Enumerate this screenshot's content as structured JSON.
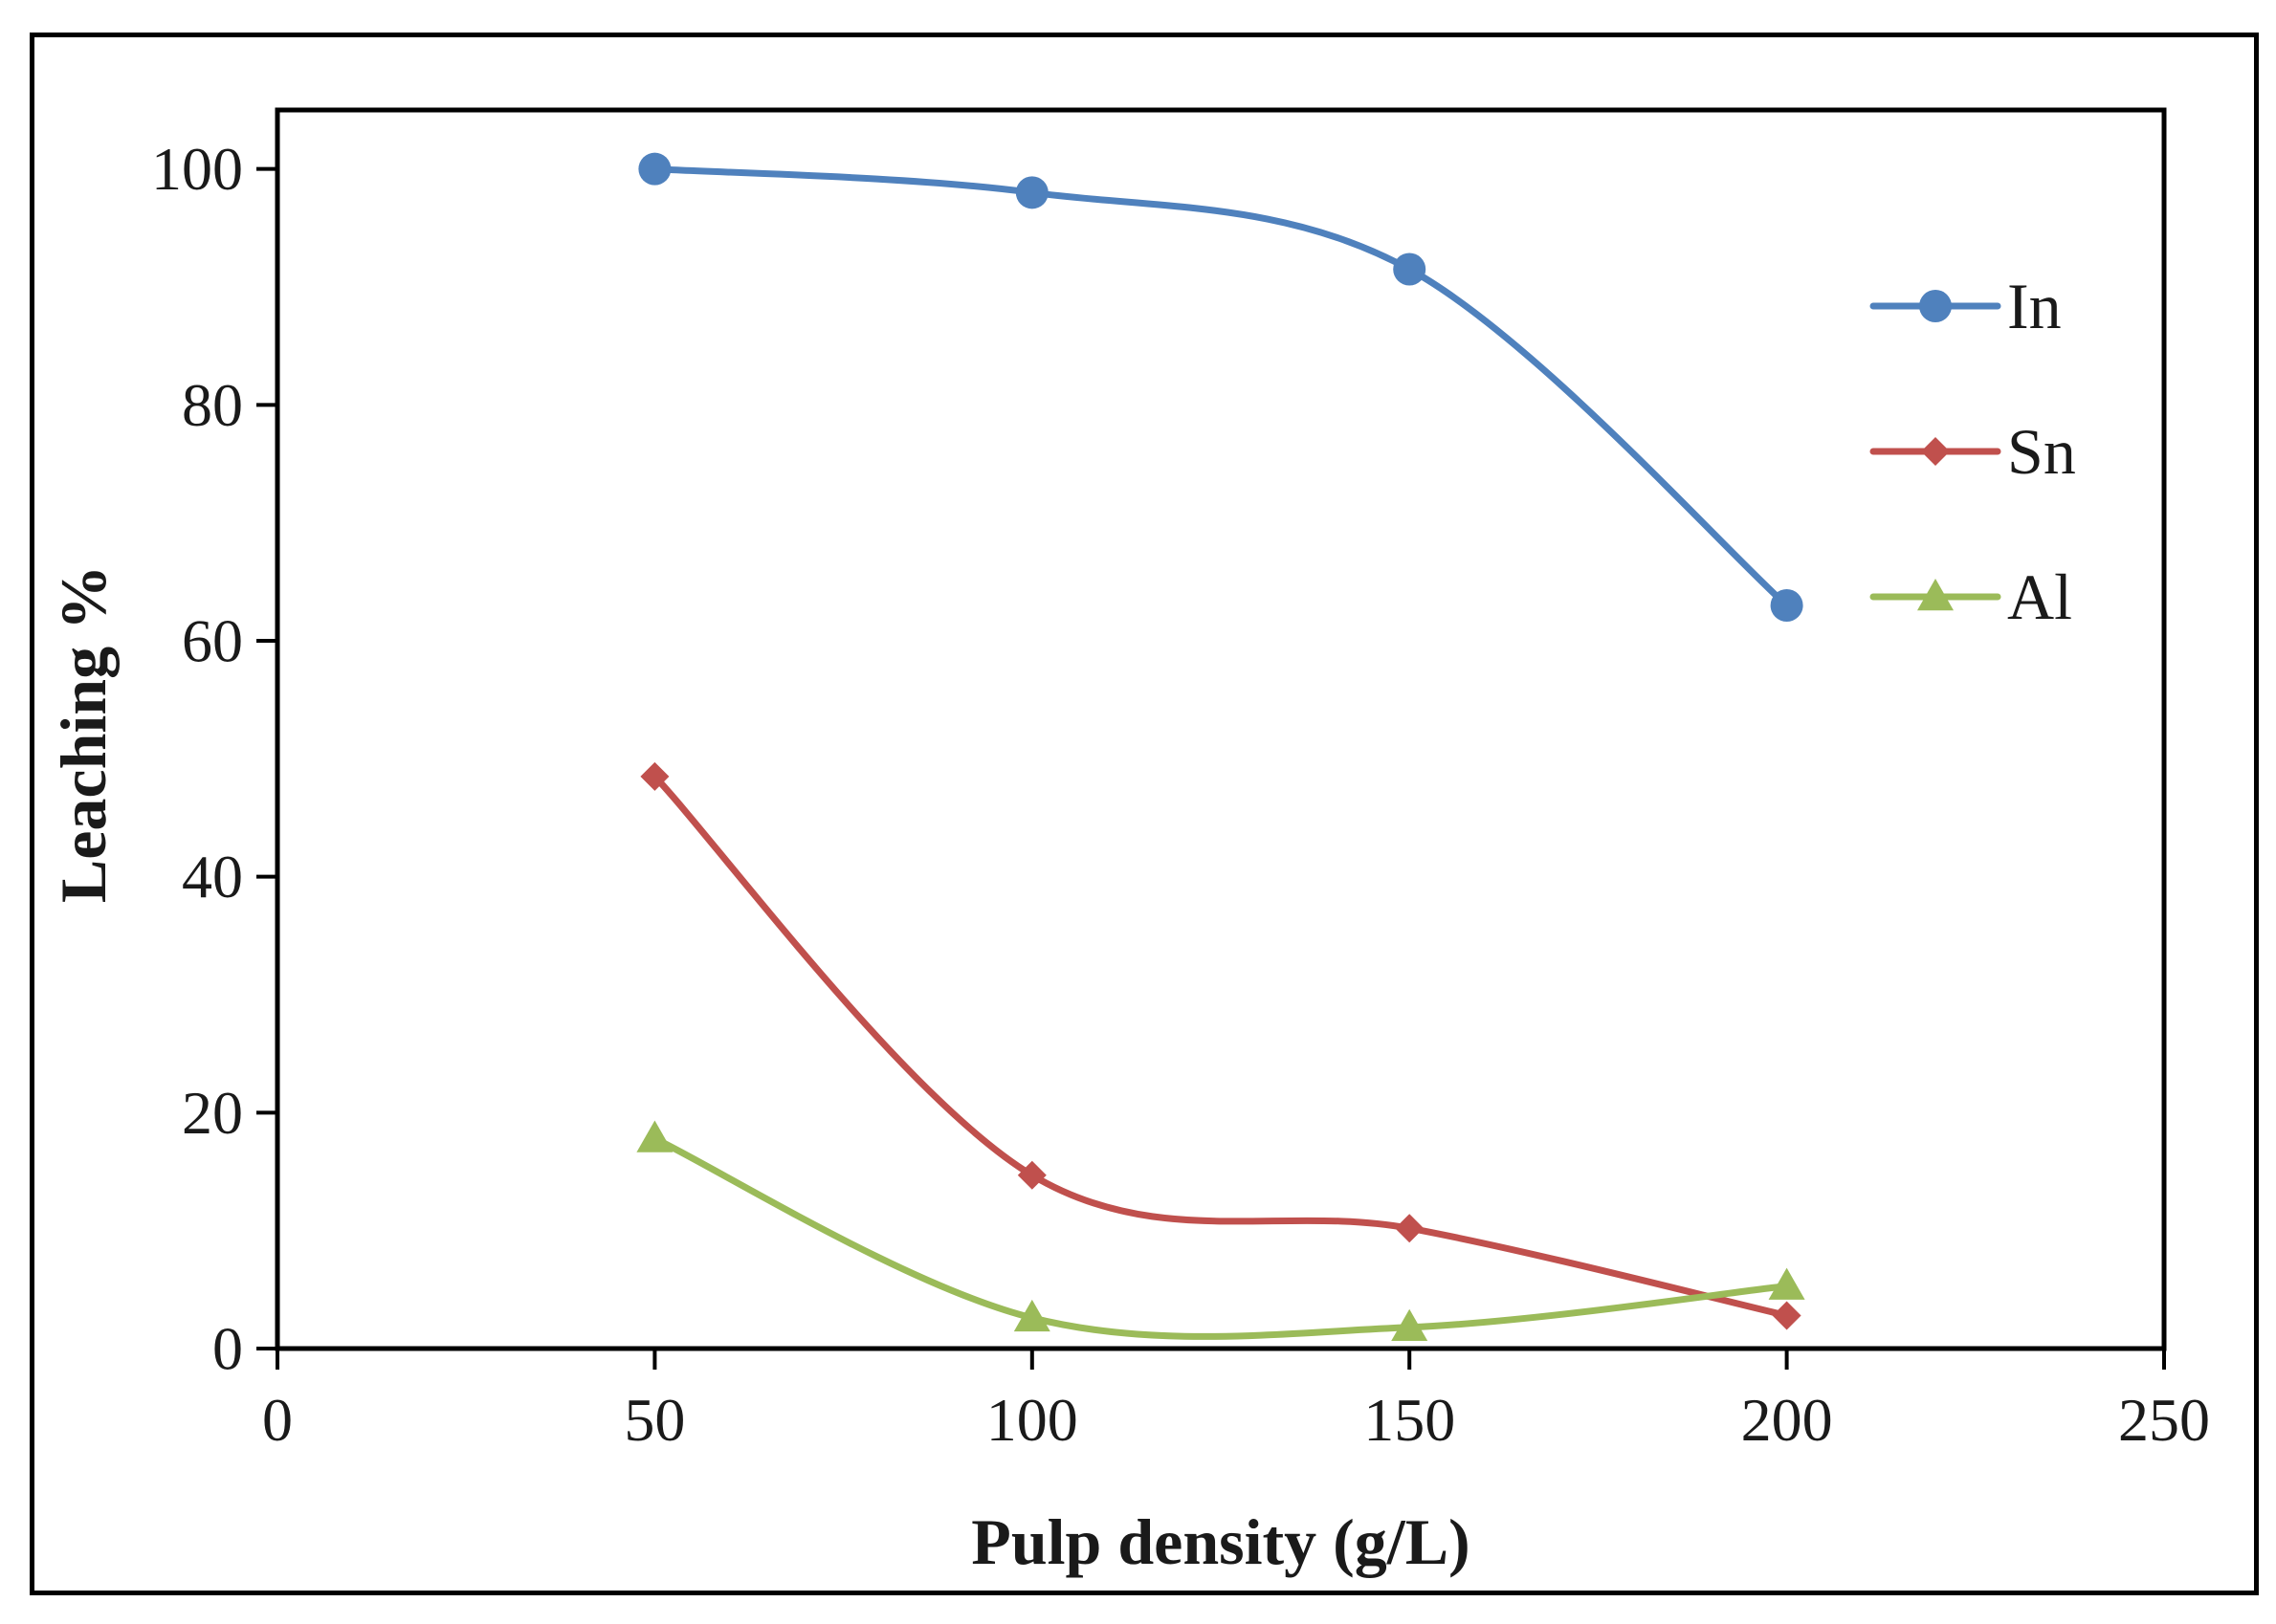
{
  "chart_data": {
    "type": "line",
    "title": "",
    "xlabel": "Pulp density (g/L)",
    "ylabel": "Leaching %",
    "xlim": [
      0,
      250
    ],
    "ylim": [
      0,
      105
    ],
    "xticks": [
      0,
      50,
      100,
      150,
      200,
      250
    ],
    "yticks": [
      0,
      20,
      40,
      60,
      80,
      100
    ],
    "grid": false,
    "legend_position": "right",
    "x": [
      50,
      100,
      150,
      200
    ],
    "series": [
      {
        "name": "In",
        "values": [
          100,
          98,
          91.5,
          63
        ],
        "color": "#4F81BD",
        "marker": "circle"
      },
      {
        "name": "Sn",
        "values": [
          48.5,
          14.7,
          10.2,
          2.8
        ],
        "color": "#C0504D",
        "marker": "diamond"
      },
      {
        "name": "Al",
        "values": [
          17.8,
          2.6,
          1.8,
          5.3
        ],
        "color": "#9BBB59",
        "marker": "triangle"
      }
    ]
  }
}
